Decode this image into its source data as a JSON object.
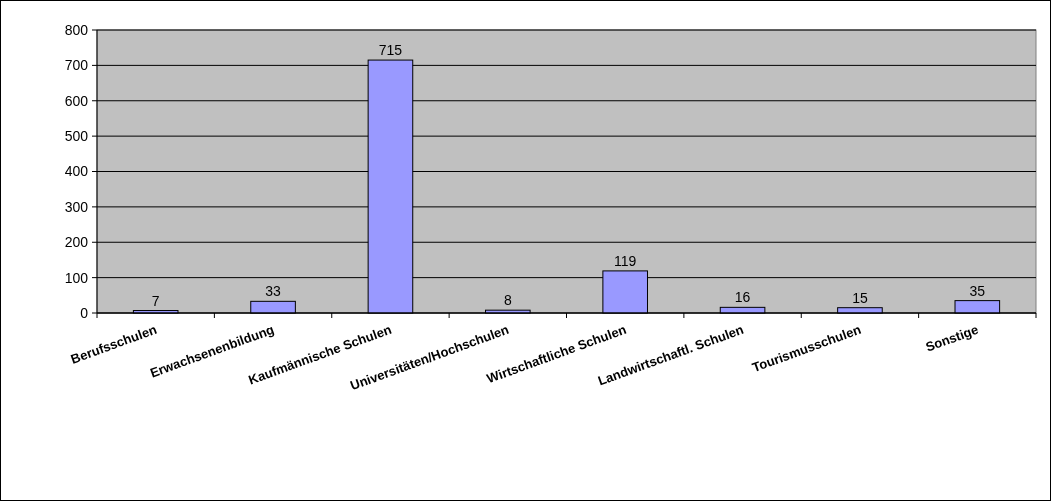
{
  "chart_data": {
    "type": "bar",
    "categories": [
      "Berufsschulen",
      "Erwachsenenbildung",
      "Kaufmännische Schulen",
      "Universitäten/Hochschulen",
      "Wirtschaftliche Schulen",
      "Landwirtschaftl. Schulen",
      "Tourismusschulen",
      "Sonstige"
    ],
    "values": [
      7,
      33,
      715,
      8,
      119,
      16,
      15,
      35
    ],
    "color": "#9999ff",
    "ylim": [
      0,
      800
    ],
    "yticks": [
      0,
      100,
      200,
      300,
      400,
      500,
      600,
      700,
      800
    ],
    "grid": "y",
    "data_labels": true
  }
}
